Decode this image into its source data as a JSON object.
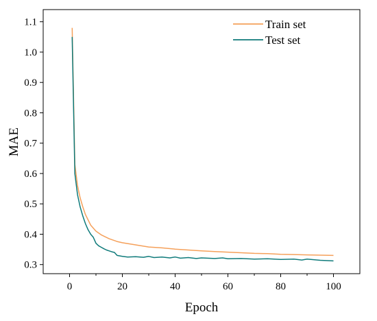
{
  "chart_data": {
    "type": "line",
    "xlabel": "Epoch",
    "ylabel": "MAE",
    "xlim": [
      -10,
      110
    ],
    "ylim": [
      0.27,
      1.14
    ],
    "xticks": [
      0,
      20,
      40,
      60,
      80,
      100
    ],
    "yticks": [
      0.3,
      0.4,
      0.5,
      0.6,
      0.7,
      0.8,
      0.9,
      1.0,
      1.1
    ],
    "ytick_labels": [
      "0.3",
      "0.4",
      "0.5",
      "0.6",
      "0.7",
      "0.8",
      "0.9",
      "1.0",
      "1.1"
    ],
    "grid": false,
    "legend_position": "top-right",
    "series": [
      {
        "name": "Train set",
        "color": "#F5A05A",
        "x": [
          1,
          2,
          3,
          4,
          5,
          6,
          8,
          10,
          12,
          15,
          18,
          20,
          25,
          30,
          35,
          40,
          45,
          50,
          55,
          60,
          65,
          70,
          75,
          80,
          85,
          90,
          95,
          100
        ],
        "y": [
          1.08,
          0.63,
          0.56,
          0.52,
          0.49,
          0.465,
          0.43,
          0.41,
          0.398,
          0.385,
          0.376,
          0.372,
          0.365,
          0.358,
          0.355,
          0.351,
          0.348,
          0.345,
          0.343,
          0.341,
          0.339,
          0.337,
          0.336,
          0.334,
          0.333,
          0.332,
          0.331,
          0.33
        ]
      },
      {
        "name": "Test set",
        "color": "#0E7A7A",
        "x": [
          1,
          2,
          3,
          4,
          5,
          6,
          7,
          8,
          9,
          10,
          11,
          12,
          13,
          14,
          15,
          16,
          17,
          18,
          20,
          22,
          25,
          28,
          30,
          32,
          35,
          38,
          40,
          42,
          45,
          48,
          50,
          55,
          58,
          60,
          65,
          70,
          75,
          80,
          85,
          88,
          90,
          95,
          100
        ],
        "y": [
          1.05,
          0.6,
          0.53,
          0.49,
          0.46,
          0.435,
          0.415,
          0.4,
          0.39,
          0.37,
          0.362,
          0.357,
          0.352,
          0.348,
          0.345,
          0.342,
          0.34,
          0.33,
          0.327,
          0.325,
          0.326,
          0.324,
          0.327,
          0.323,
          0.325,
          0.322,
          0.325,
          0.321,
          0.323,
          0.32,
          0.322,
          0.32,
          0.322,
          0.319,
          0.32,
          0.318,
          0.319,
          0.317,
          0.318,
          0.315,
          0.318,
          0.314,
          0.312
        ]
      }
    ]
  }
}
